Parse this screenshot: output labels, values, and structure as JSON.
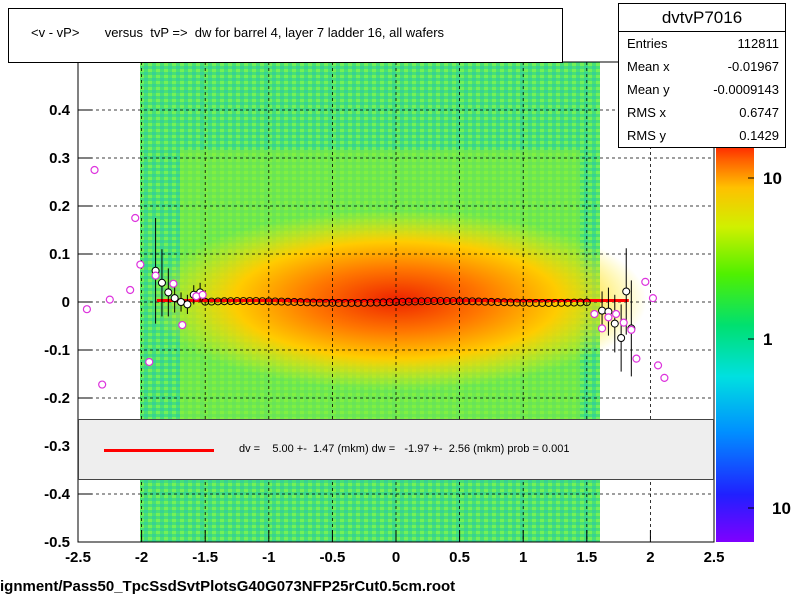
{
  "title": "<v - vP>       versus  tvP =>  dw for barrel 4, layer 7 ladder 16, all wafers",
  "stats": {
    "name": "dvtvP7016",
    "rows": [
      {
        "key": "Entries",
        "value": "112811"
      },
      {
        "key": "Mean x",
        "value": "-0.01967"
      },
      {
        "key": "Mean y",
        "value": "-0.0009143"
      },
      {
        "key": "RMS x",
        "value": "0.6747"
      },
      {
        "key": "RMS y",
        "value": "0.1429"
      }
    ]
  },
  "fit": {
    "text": "dv =    5.00 +-  1.47 (mkm) dw =   -1.97 +-  2.56 (mkm) prob = 0.001",
    "line_color": "#ff0000"
  },
  "footer": "ignment/Pass50_TpcSsdSvtPlotsG40G073NFP25rCut0.5cm.root",
  "colorbar": {
    "labels": [
      "10",
      "1",
      "10"
    ]
  },
  "chart_data": {
    "type": "scatter",
    "title": "<v - vP>       versus  tvP =>  dw for barrel 4, layer 7 ladder 16, all wafers",
    "xlim": [
      -2.5,
      2.5
    ],
    "ylim": [
      -0.5,
      0.5
    ],
    "x_ticks": [
      "-2.5",
      "-2",
      "-1.5",
      "-1",
      "-0.5",
      "0",
      "0.5",
      "1",
      "1.5",
      "2",
      "2.5"
    ],
    "y_ticks": [
      "-0.5",
      "-0.4",
      "-0.3",
      "-0.2",
      "-0.1",
      "0",
      "0.1",
      "0.2",
      "0.3",
      "0.4"
    ],
    "y_tick_values": [
      -0.5,
      -0.4,
      -0.3,
      -0.2,
      -0.1,
      0,
      0.1,
      0.2,
      0.3,
      0.4
    ],
    "x_tick_values": [
      -2.5,
      -2,
      -1.5,
      -1,
      -0.5,
      0,
      0.5,
      1,
      1.5,
      2,
      2.5
    ],
    "grid": true,
    "fit_line": {
      "x": [
        -1.88,
        1.83
      ],
      "y": [
        0.003,
        0.003
      ],
      "color": "#ff0000"
    },
    "profile_magenta": [
      {
        "x": -2.43,
        "y": -0.015
      },
      {
        "x": -2.37,
        "y": 0.275
      },
      {
        "x": -2.31,
        "y": -0.172
      },
      {
        "x": -2.25,
        "y": 0.005
      },
      {
        "x": -2.09,
        "y": 0.025
      },
      {
        "x": -2.05,
        "y": 0.175
      },
      {
        "x": -2.01,
        "y": 0.078
      },
      {
        "x": -1.94,
        "y": -0.125
      },
      {
        "x": -1.89,
        "y": 0.055
      },
      {
        "x": -1.75,
        "y": 0.038
      },
      {
        "x": -1.68,
        "y": -0.048
      },
      {
        "x": -1.57,
        "y": 0.012
      },
      {
        "x": -1.52,
        "y": 0.015
      },
      {
        "x": 1.56,
        "y": -0.025
      },
      {
        "x": 1.62,
        "y": -0.055
      },
      {
        "x": 1.67,
        "y": -0.032
      },
      {
        "x": 1.73,
        "y": -0.025
      },
      {
        "x": 1.79,
        "y": -0.043
      },
      {
        "x": 1.85,
        "y": -0.058
      },
      {
        "x": 1.89,
        "y": -0.118
      },
      {
        "x": 1.96,
        "y": 0.042
      },
      {
        "x": 2.02,
        "y": 0.008
      },
      {
        "x": 2.06,
        "y": -0.132
      },
      {
        "x": 2.11,
        "y": -0.158
      }
    ],
    "profile_black": [
      {
        "x": -1.89,
        "y": 0.065,
        "err": 0.11
      },
      {
        "x": -1.84,
        "y": 0.04,
        "err": 0.07
      },
      {
        "x": -1.79,
        "y": 0.02,
        "err": 0.05
      },
      {
        "x": -1.74,
        "y": 0.008,
        "err": 0.03
      },
      {
        "x": -1.69,
        "y": 0.0,
        "err": 0.02
      },
      {
        "x": -1.64,
        "y": -0.005,
        "err": 0.02
      },
      {
        "x": -1.59,
        "y": 0.015,
        "err": 0.02
      },
      {
        "x": -1.54,
        "y": 0.02,
        "err": 0.02
      },
      {
        "x": 1.62,
        "y": -0.018,
        "err": 0.04
      },
      {
        "x": 1.67,
        "y": -0.02,
        "err": 0.05
      },
      {
        "x": 1.72,
        "y": -0.045,
        "err": 0.06
      },
      {
        "x": 1.77,
        "y": -0.075,
        "err": 0.07
      },
      {
        "x": 1.81,
        "y": 0.022,
        "err": 0.09
      },
      {
        "x": 1.85,
        "y": -0.055,
        "err": 0.1
      }
    ]
  }
}
